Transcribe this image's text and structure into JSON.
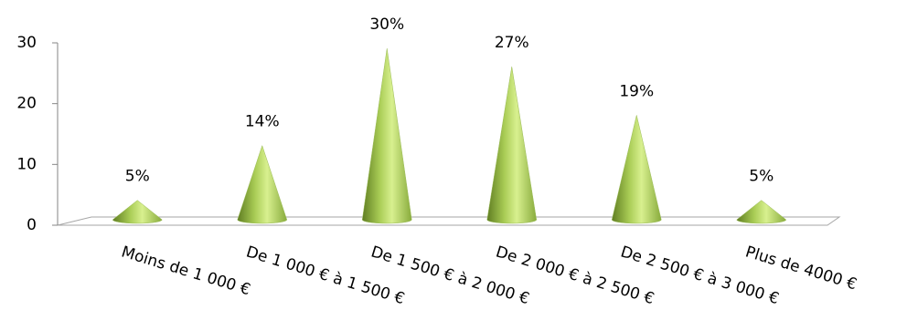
{
  "chart_data": {
    "type": "cone",
    "categories": [
      "Moins de 1 000 €",
      "De 1 000 € à 1 500 €",
      "De 1 500 € à 2 000 €",
      "De 2 000 € à 2 500 €",
      "De 2 500 € à 3 000 €",
      "Plus de 4000 €"
    ],
    "values": [
      5,
      14,
      30,
      27,
      19,
      5
    ],
    "value_labels": [
      "5%",
      "14%",
      "30%",
      "27%",
      "19%",
      "5%"
    ],
    "color": "#9bbb59",
    "ylim": [
      0,
      30
    ],
    "yticks": [
      0,
      10,
      20,
      30
    ]
  }
}
